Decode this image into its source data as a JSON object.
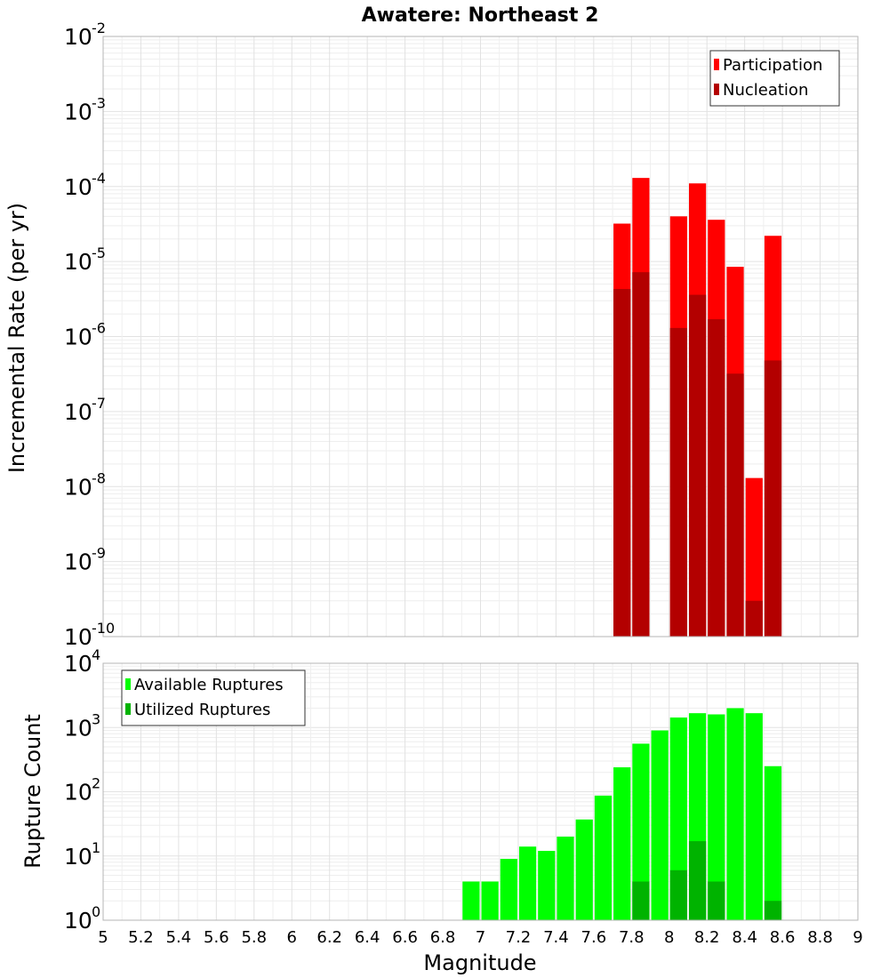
{
  "chart_data": [
    {
      "type": "bar",
      "title": "Awatere: Northeast 2",
      "xlabel": "",
      "ylabel": "Incremental Rate (per yr)",
      "yscale": "log",
      "ylim_exponents": [
        -10,
        -2
      ],
      "xlim": [
        5,
        9
      ],
      "grid": true,
      "legend_position": "top-right",
      "x": [
        7.75,
        7.85,
        7.95,
        8.05,
        8.15,
        8.25,
        8.35,
        8.45,
        8.55
      ],
      "series": [
        {
          "name": "Participation",
          "color": "#ff0000",
          "values": [
            3.2e-05,
            0.00013,
            null,
            4e-05,
            0.00011,
            3.6e-05,
            8.5e-06,
            1.3e-08,
            2.2e-05
          ]
        },
        {
          "name": "Nucleation",
          "color": "#b30000",
          "values": [
            4.3e-06,
            7.2e-06,
            null,
            1.3e-06,
            3.6e-06,
            1.7e-06,
            3.2e-07,
            3e-10,
            4.8e-07
          ]
        }
      ]
    },
    {
      "type": "bar",
      "title": "",
      "xlabel": "Magnitude",
      "ylabel": "Rupture Count",
      "yscale": "log",
      "ylim_exponents": [
        0,
        4
      ],
      "xlim": [
        5,
        9
      ],
      "grid": true,
      "legend_position": "top-left",
      "x": [
        6.85,
        6.95,
        7.05,
        7.15,
        7.25,
        7.35,
        7.45,
        7.55,
        7.65,
        7.75,
        7.85,
        7.95,
        8.05,
        8.15,
        8.25,
        8.35,
        8.45,
        8.55
      ],
      "series": [
        {
          "name": "Available Ruptures",
          "color": "#00ff00",
          "values": [
            1,
            4,
            4,
            9,
            14,
            12,
            20,
            37,
            87,
            240,
            560,
            900,
            1430,
            1670,
            1600,
            2000,
            1670,
            250
          ]
        },
        {
          "name": "Utilized Ruptures",
          "color": "#00b300",
          "values": [
            null,
            null,
            null,
            null,
            null,
            null,
            null,
            null,
            null,
            1,
            4,
            null,
            6,
            17,
            4,
            1,
            1,
            2
          ]
        }
      ],
      "x_ticks": [
        "5",
        "5.2",
        "5.4",
        "5.6",
        "5.8",
        "6",
        "6.2",
        "6.4",
        "6.6",
        "6.8",
        "7",
        "7.2",
        "7.4",
        "7.6",
        "7.8",
        "8",
        "8.2",
        "8.4",
        "8.6",
        "8.8",
        "9"
      ]
    }
  ],
  "exp_base": "10"
}
